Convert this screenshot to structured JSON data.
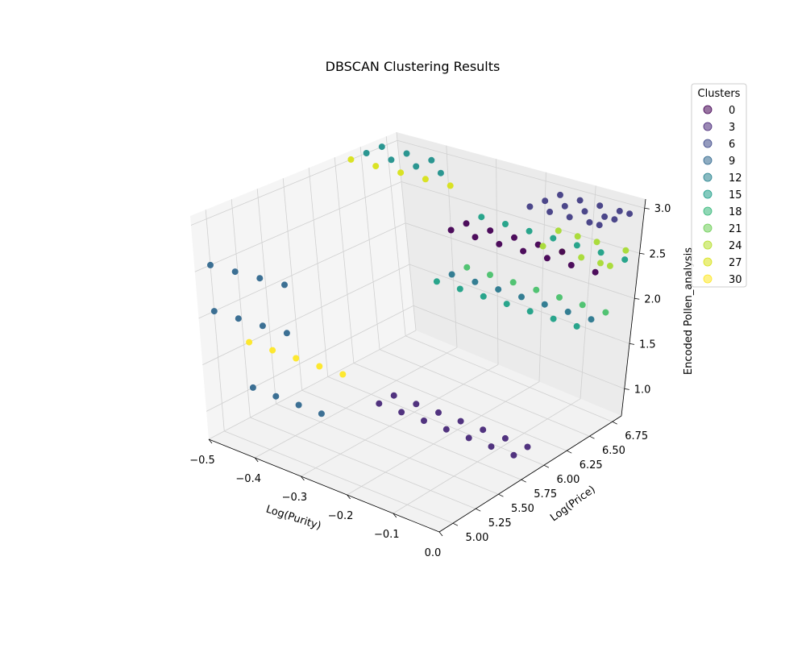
{
  "chart_data": {
    "type": "scatter",
    "title": "DBSCAN Clustering Results",
    "xlabel": "Log(Purity)",
    "ylabel": "Log(Price)",
    "zlabel": "Encoded Pollen_analysis",
    "xlim": [
      -0.5,
      0.0
    ],
    "ylim": [
      4.85,
      6.85
    ],
    "zlim": [
      0.7,
      3.1
    ],
    "xticks": [
      -0.5,
      -0.4,
      -0.3,
      -0.2,
      -0.1,
      0.0
    ],
    "xtick_labels": [
      "−0.5",
      "−0.4",
      "−0.3",
      "−0.2",
      "−0.1",
      "0.0"
    ],
    "yticks": [
      5.0,
      5.25,
      5.5,
      5.75,
      6.0,
      6.25,
      6.5,
      6.75
    ],
    "ytick_labels": [
      "5.00",
      "5.25",
      "5.50",
      "5.75",
      "6.00",
      "6.25",
      "6.50",
      "6.75"
    ],
    "zticks": [
      1.0,
      1.5,
      2.0,
      2.5,
      3.0
    ],
    "ztick_labels": [
      "1.0",
      "1.5",
      "2.0",
      "2.5",
      "3.0"
    ],
    "grid": true,
    "colormap": "viridis",
    "legend": {
      "title": "Clusters",
      "position": "top-right",
      "entries": [
        "0",
        "3",
        "6",
        "9",
        "12",
        "15",
        "18",
        "21",
        "24",
        "27",
        "30"
      ],
      "colors": [
        "#440154",
        "#472d7b",
        "#3b528b",
        "#2c728e",
        "#21918c",
        "#28ae80",
        "#5ec962",
        "#addc30",
        "#fde725",
        "#fde725",
        "#fde725"
      ],
      "entry_colors": [
        "#440154",
        "#482878",
        "#3e4989",
        "#31688e",
        "#26828e",
        "#1f9e89",
        "#35b779",
        "#6ece58",
        "#b5de2b",
        "#d8e219",
        "#fde725"
      ]
    },
    "series": [
      {
        "cluster": 4,
        "color": "#433e85",
        "points": [
          [
            -0.14,
            6.55,
            3.0
          ],
          [
            -0.1,
            6.55,
            3.0
          ],
          [
            -0.06,
            6.55,
            3.0
          ],
          [
            -0.02,
            6.55,
            3.0
          ],
          [
            0.0,
            6.55,
            3.0
          ],
          [
            -0.14,
            6.7,
            3.0
          ],
          [
            -0.1,
            6.7,
            3.0
          ],
          [
            -0.06,
            6.7,
            3.0
          ],
          [
            -0.02,
            6.7,
            3.0
          ],
          [
            0.0,
            6.7,
            3.0
          ],
          [
            -0.14,
            6.4,
            3.0
          ],
          [
            -0.1,
            6.4,
            3.0
          ],
          [
            -0.06,
            6.4,
            3.0
          ],
          [
            -0.02,
            6.4,
            3.0
          ],
          [
            0.0,
            6.4,
            3.0
          ]
        ]
      },
      {
        "cluster": 26,
        "color": "#a8db34",
        "points": [
          [
            -0.14,
            6.55,
            2.5
          ],
          [
            -0.1,
            6.55,
            2.5
          ],
          [
            -0.06,
            6.55,
            2.5
          ],
          [
            -0.02,
            6.55,
            2.5
          ],
          [
            0.0,
            6.55,
            2.5
          ],
          [
            -0.14,
            6.7,
            2.6
          ],
          [
            -0.1,
            6.7,
            2.6
          ],
          [
            -0.06,
            6.7,
            2.6
          ],
          [
            0.0,
            6.7,
            2.6
          ]
        ]
      },
      {
        "cluster": 0,
        "color": "#440154",
        "points": [
          [
            -0.3,
            6.55,
            2.5
          ],
          [
            -0.25,
            6.55,
            2.5
          ],
          [
            -0.2,
            6.55,
            2.5
          ],
          [
            -0.15,
            6.55,
            2.5
          ],
          [
            -0.1,
            6.55,
            2.5
          ],
          [
            -0.3,
            6.4,
            2.5
          ],
          [
            -0.25,
            6.4,
            2.5
          ],
          [
            -0.2,
            6.4,
            2.5
          ],
          [
            -0.15,
            6.4,
            2.5
          ],
          [
            -0.1,
            6.4,
            2.5
          ],
          [
            -0.05,
            6.4,
            2.5
          ],
          [
            0.0,
            6.4,
            2.5
          ]
        ]
      },
      {
        "cluster": 16,
        "color": "#1fa187",
        "points": [
          [
            -0.3,
            6.7,
            2.5
          ],
          [
            -0.25,
            6.7,
            2.5
          ],
          [
            -0.2,
            6.7,
            2.5
          ],
          [
            -0.15,
            6.7,
            2.5
          ],
          [
            -0.1,
            6.7,
            2.5
          ],
          [
            -0.05,
            6.7,
            2.5
          ],
          [
            0.0,
            6.7,
            2.5
          ],
          [
            -0.3,
            6.25,
            2.0
          ],
          [
            -0.25,
            6.25,
            2.0
          ],
          [
            -0.2,
            6.25,
            2.0
          ],
          [
            -0.15,
            6.25,
            2.0
          ],
          [
            -0.1,
            6.25,
            2.0
          ],
          [
            -0.05,
            6.25,
            2.0
          ],
          [
            0.0,
            6.25,
            2.0
          ]
        ]
      },
      {
        "cluster": 22,
        "color": "#4ac16d",
        "points": [
          [
            -0.3,
            6.55,
            2.0
          ],
          [
            -0.25,
            6.55,
            2.0
          ],
          [
            -0.2,
            6.55,
            2.0
          ],
          [
            -0.15,
            6.55,
            2.0
          ],
          [
            -0.1,
            6.55,
            2.0
          ],
          [
            -0.05,
            6.55,
            2.0
          ],
          [
            0.0,
            6.55,
            2.0
          ]
        ]
      },
      {
        "cluster": 10,
        "color": "#2a788e",
        "points": [
          [
            -0.3,
            6.4,
            2.0
          ],
          [
            -0.25,
            6.4,
            2.0
          ],
          [
            -0.2,
            6.4,
            2.0
          ],
          [
            -0.15,
            6.4,
            2.0
          ],
          [
            -0.1,
            6.4,
            2.0
          ],
          [
            -0.05,
            6.4,
            2.0
          ],
          [
            0.0,
            6.4,
            2.0
          ]
        ]
      },
      {
        "cluster": 3,
        "color": "#482878",
        "points": [
          [
            -0.3,
            5.8,
            1.0
          ],
          [
            -0.25,
            5.8,
            1.0
          ],
          [
            -0.2,
            5.8,
            1.0
          ],
          [
            -0.15,
            5.8,
            1.0
          ],
          [
            -0.1,
            5.8,
            1.0
          ],
          [
            -0.05,
            5.8,
            1.0
          ],
          [
            0.0,
            5.8,
            1.0
          ],
          [
            -0.3,
            5.65,
            1.0
          ],
          [
            -0.25,
            5.65,
            1.0
          ],
          [
            -0.2,
            5.65,
            1.0
          ],
          [
            -0.15,
            5.65,
            1.0
          ],
          [
            -0.1,
            5.65,
            1.0
          ],
          [
            -0.05,
            5.65,
            1.0
          ],
          [
            0.0,
            5.65,
            1.0
          ]
        ]
      },
      {
        "cluster": 12,
        "color": "#21918c",
        "points": [
          [
            -0.5,
            6.55,
            3.0
          ],
          [
            -0.45,
            6.55,
            3.0
          ],
          [
            -0.4,
            6.55,
            3.0
          ],
          [
            -0.35,
            6.55,
            3.0
          ],
          [
            -0.5,
            6.7,
            3.0
          ],
          [
            -0.45,
            6.7,
            3.0
          ],
          [
            -0.4,
            6.7,
            3.0
          ]
        ]
      },
      {
        "cluster": 28,
        "color": "#d8e219",
        "points": [
          [
            -0.5,
            6.4,
            3.0
          ],
          [
            -0.45,
            6.4,
            3.0
          ],
          [
            -0.4,
            6.4,
            3.0
          ],
          [
            -0.35,
            6.4,
            3.0
          ],
          [
            -0.3,
            6.4,
            3.0
          ]
        ]
      },
      {
        "cluster": 30,
        "color": "#fde725",
        "points": [
          [
            -0.5,
            5.3,
            1.5
          ],
          [
            -0.45,
            5.3,
            1.5
          ],
          [
            -0.4,
            5.3,
            1.5
          ],
          [
            -0.35,
            5.3,
            1.5
          ],
          [
            -0.3,
            5.3,
            1.5
          ]
        ]
      },
      {
        "cluster": 8,
        "color": "#31688e",
        "points": [
          [
            -0.5,
            5.0,
            2.5
          ],
          [
            -0.45,
            5.0,
            2.5
          ],
          [
            -0.4,
            5.0,
            2.5
          ],
          [
            -0.35,
            5.0,
            2.5
          ],
          [
            -0.5,
            5.0,
            2.0
          ],
          [
            -0.45,
            5.0,
            2.0
          ],
          [
            -0.4,
            5.0,
            2.0
          ],
          [
            -0.35,
            5.0,
            2.0
          ],
          [
            -0.5,
            5.3,
            1.0
          ],
          [
            -0.45,
            5.3,
            1.0
          ],
          [
            -0.4,
            5.3,
            1.0
          ],
          [
            -0.35,
            5.3,
            1.0
          ]
        ]
      }
    ]
  }
}
